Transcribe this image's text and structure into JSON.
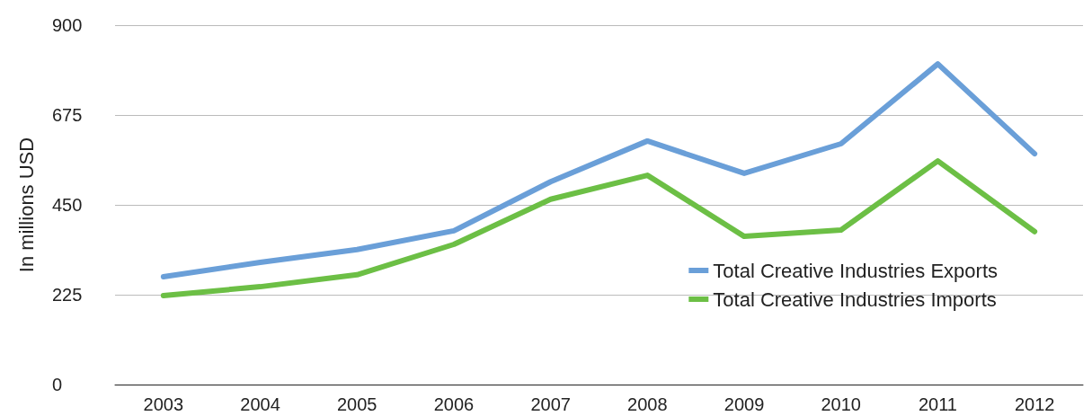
{
  "chart_data": {
    "type": "line",
    "ylabel": "In millions USD",
    "categories": [
      "2003",
      "2004",
      "2005",
      "2006",
      "2007",
      "2008",
      "2009",
      "2010",
      "2011",
      "2012"
    ],
    "series": [
      {
        "name": "Total Creative Industries Exports",
        "color": "#6a9fd8",
        "values": [
          270,
          306,
          338,
          385,
          508,
          610,
          529,
          603,
          803,
          578
        ]
      },
      {
        "name": "Total Creative Industries Imports",
        "color": "#6cbf45",
        "values": [
          223,
          245,
          275,
          351,
          464,
          524,
          371,
          387,
          560,
          383
        ]
      }
    ],
    "ylim": [
      0,
      900
    ],
    "yticks": [
      0,
      225,
      450,
      675,
      900
    ],
    "grid": "y",
    "legend": "right",
    "marker": "none",
    "line_style": "solid"
  }
}
